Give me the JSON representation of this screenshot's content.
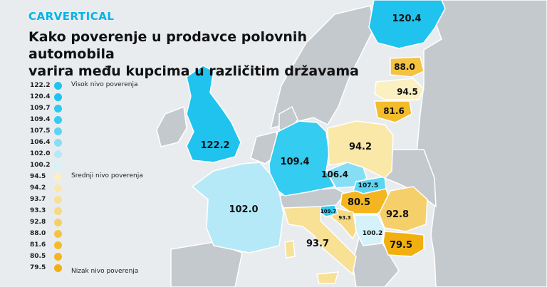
{
  "brand": {
    "name": "CARVERTICAL"
  },
  "title": {
    "line1": "Kako poverenje u prodavce polovnih automobila",
    "line2": "varira među kupcima u različitim državama"
  },
  "legend": {
    "high_label": "Visok nivo poverenja",
    "mid_label": "Srednji nivo poverenja",
    "low_label": "Nizak nivo poverenja",
    "items": [
      {
        "value": "122.2",
        "color": "#1fc3ee"
      },
      {
        "value": "120.4",
        "color": "#1fc3ee"
      },
      {
        "value": "109.7",
        "color": "#2ccaf0"
      },
      {
        "value": "109.4",
        "color": "#34ccf0"
      },
      {
        "value": "107.5",
        "color": "#5bd5f2"
      },
      {
        "value": "106.4",
        "color": "#86def4"
      },
      {
        "value": "102.0",
        "color": "#b5e9f7"
      },
      {
        "value": "100.2",
        "color": "#d5f1f9"
      },
      {
        "value": "94.5",
        "color": "#fbf0c2"
      },
      {
        "value": "94.2",
        "color": "#fae8a8"
      },
      {
        "value": "93.7",
        "color": "#f8e094"
      },
      {
        "value": "93.3",
        "color": "#f6d983"
      },
      {
        "value": "92.8",
        "color": "#f5cf6a"
      },
      {
        "value": "88.0",
        "color": "#f4c341"
      },
      {
        "value": "81.6",
        "color": "#f4bb2a"
      },
      {
        "value": "80.5",
        "color": "#f3b620"
      },
      {
        "value": "79.5",
        "color": "#f2b010"
      }
    ]
  },
  "countries": {
    "uk": {
      "value": "122.2"
    },
    "finland": {
      "value": "120.4"
    },
    "germany": {
      "value": "109.4"
    },
    "slovenia": {
      "value": "109.7"
    },
    "slovakia": {
      "value": "107.5"
    },
    "czechia": {
      "value": "106.4"
    },
    "france": {
      "value": "102.0"
    },
    "serbia": {
      "value": "100.2"
    },
    "estonia": {
      "value": "88.0"
    },
    "latvia": {
      "value": "94.5"
    },
    "lithuania": {
      "value": "81.6"
    },
    "poland": {
      "value": "94.2"
    },
    "hungary": {
      "value": "80.5"
    },
    "croatia": {
      "value": "93.3"
    },
    "romania": {
      "value": "92.8"
    },
    "italy": {
      "value": "93.7"
    },
    "bulgaria": {
      "value": "79.5"
    }
  },
  "colors": {
    "background": "#e9ecef",
    "neutral_land": "#c4c9ce",
    "border": "#ffffff",
    "brand": "#00b3e6"
  }
}
